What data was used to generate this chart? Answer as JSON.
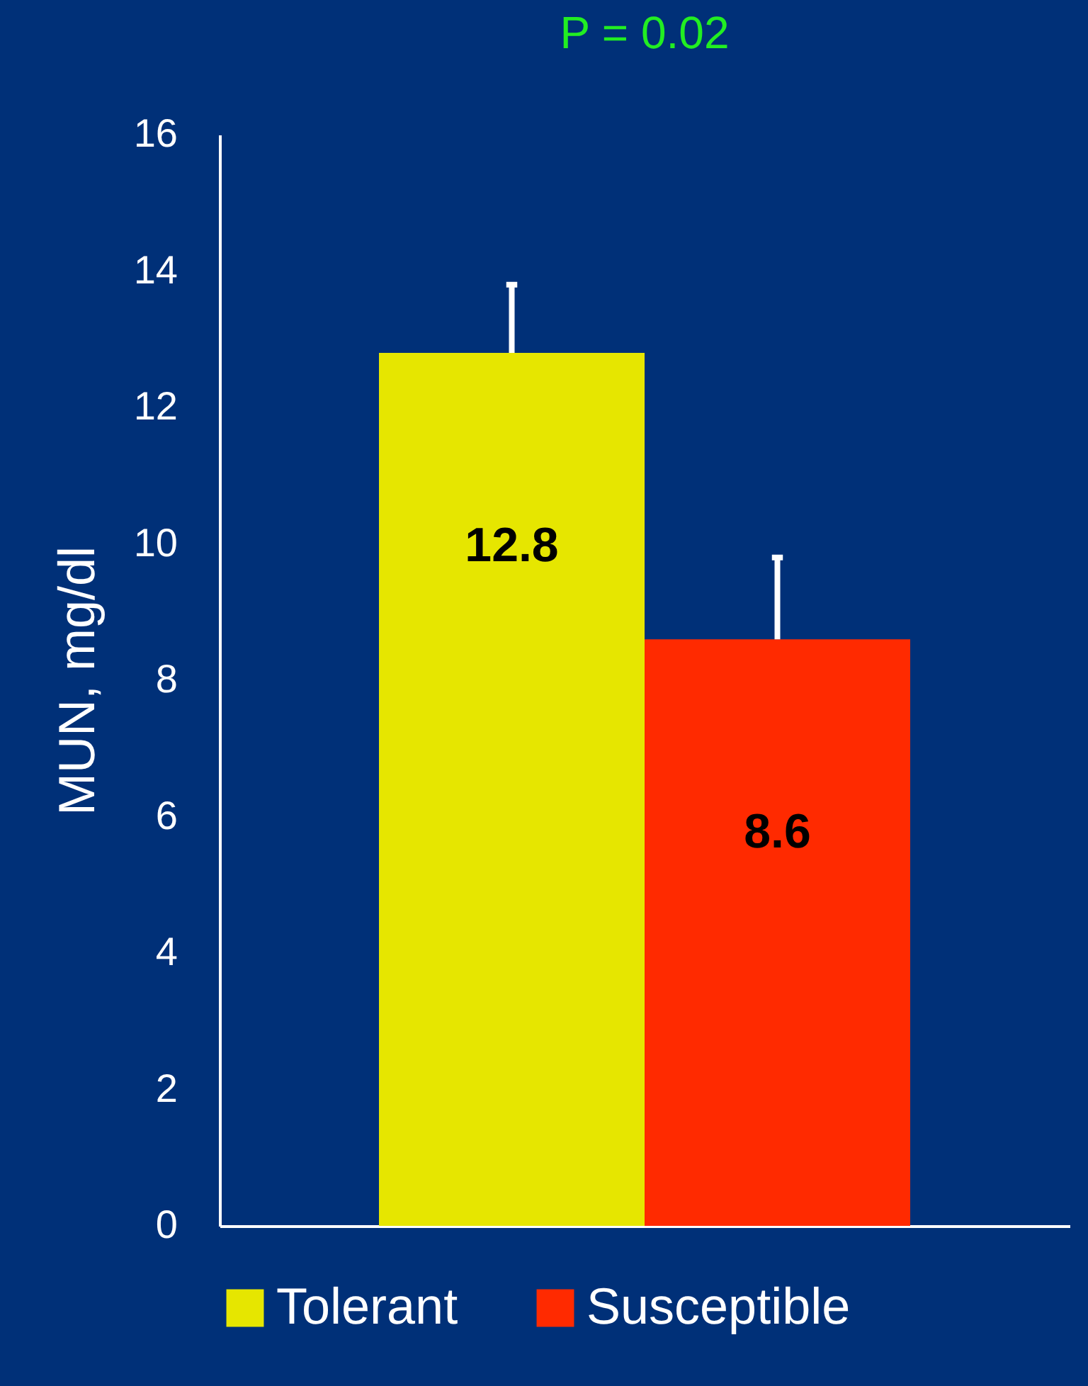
{
  "chart_data": {
    "type": "bar",
    "ylabel": "MUN, mg/dl",
    "annotations": [
      "P = 0.02"
    ],
    "categories": [
      null
    ],
    "series": [
      {
        "name": "Tolerant",
        "color": "#e6e600",
        "values": [
          12.8
        ],
        "errors": [
          [
            12.8,
            13.8
          ]
        ]
      },
      {
        "name": "Susceptible",
        "color": "#ff2a00",
        "values": [
          8.6
        ],
        "errors": [
          [
            8.6,
            9.8
          ]
        ]
      }
    ],
    "ylim": [
      0,
      16
    ],
    "yticks": [
      0,
      2,
      4,
      6,
      8,
      10,
      12,
      14,
      16
    ],
    "data_labels": true,
    "grid": false,
    "legend": "bottom"
  }
}
